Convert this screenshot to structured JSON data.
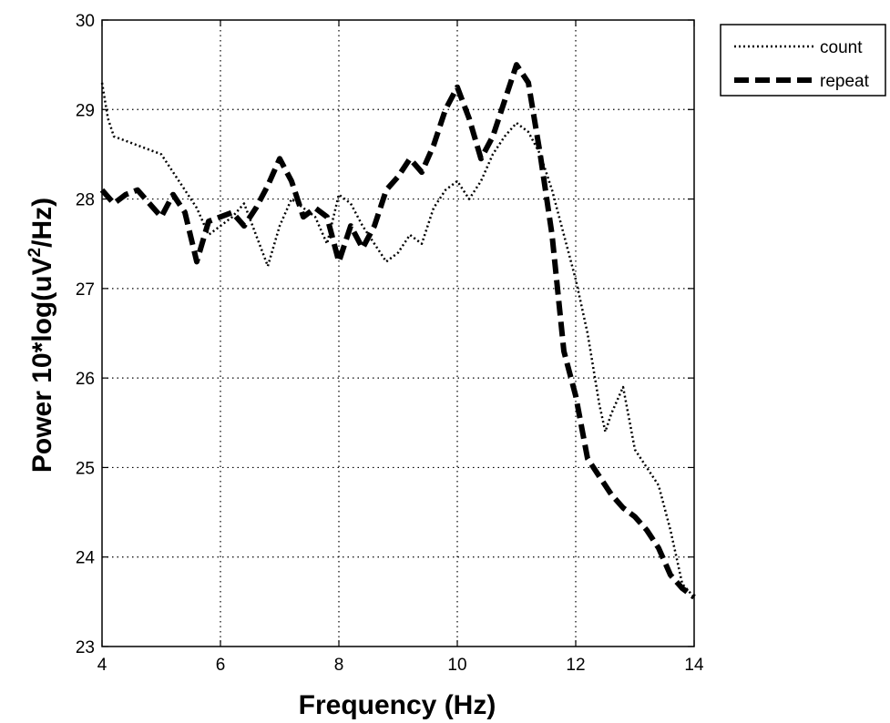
{
  "chart_data": {
    "type": "line",
    "title": "",
    "xlabel": "Frequency (Hz)",
    "ylabel_prefix": "Power 10*log(uV",
    "ylabel_sup": "2",
    "ylabel_suffix": "/Hz)",
    "xlim": [
      4,
      14
    ],
    "ylim": [
      23,
      30
    ],
    "xticks": [
      4,
      6,
      8,
      10,
      12,
      14
    ],
    "yticks": [
      23,
      24,
      25,
      26,
      27,
      28,
      29,
      30
    ],
    "grid": true,
    "legend_position": "outside-top-right",
    "series": [
      {
        "name": "count",
        "style": "dotted",
        "color": "#000000",
        "x": [
          4.0,
          4.1,
          4.2,
          4.4,
          4.6,
          4.8,
          5.0,
          5.2,
          5.4,
          5.6,
          5.8,
          6.0,
          6.2,
          6.4,
          6.6,
          6.8,
          7.0,
          7.2,
          7.4,
          7.6,
          7.8,
          8.0,
          8.2,
          8.4,
          8.6,
          8.8,
          9.0,
          9.2,
          9.4,
          9.6,
          9.8,
          10.0,
          10.2,
          10.4,
          10.6,
          10.8,
          11.0,
          11.2,
          11.4,
          11.6,
          11.8,
          12.0,
          12.2,
          12.4,
          12.5,
          12.6,
          12.8,
          13.0,
          13.2,
          13.4,
          13.6,
          13.8,
          14.0
        ],
        "y": [
          29.3,
          28.9,
          28.7,
          28.65,
          28.6,
          28.55,
          28.5,
          28.3,
          28.1,
          27.9,
          27.6,
          27.7,
          27.8,
          27.95,
          27.6,
          27.25,
          27.7,
          28.0,
          27.9,
          27.8,
          27.5,
          28.05,
          27.95,
          27.7,
          27.5,
          27.3,
          27.4,
          27.6,
          27.5,
          27.9,
          28.1,
          28.2,
          28.0,
          28.2,
          28.5,
          28.7,
          28.85,
          28.75,
          28.5,
          28.1,
          27.6,
          27.1,
          26.5,
          25.7,
          25.4,
          25.6,
          25.9,
          25.2,
          25.0,
          24.8,
          24.3,
          23.7,
          23.55
        ]
      },
      {
        "name": "repeat",
        "style": "dashed",
        "color": "#000000",
        "x": [
          4.0,
          4.2,
          4.4,
          4.6,
          4.8,
          5.0,
          5.2,
          5.4,
          5.6,
          5.8,
          6.0,
          6.2,
          6.4,
          6.6,
          6.8,
          7.0,
          7.2,
          7.4,
          7.6,
          7.8,
          8.0,
          8.2,
          8.4,
          8.6,
          8.8,
          9.0,
          9.2,
          9.4,
          9.6,
          9.8,
          10.0,
          10.2,
          10.4,
          10.6,
          10.8,
          11.0,
          11.2,
          11.4,
          11.6,
          11.8,
          12.0,
          12.2,
          12.4,
          12.6,
          12.8,
          13.0,
          13.2,
          13.4,
          13.6,
          13.8,
          14.0
        ],
        "y": [
          28.1,
          27.95,
          28.05,
          28.1,
          27.95,
          27.8,
          28.05,
          27.85,
          27.3,
          27.75,
          27.8,
          27.85,
          27.7,
          27.9,
          28.15,
          28.45,
          28.2,
          27.8,
          27.9,
          27.8,
          27.3,
          27.7,
          27.45,
          27.7,
          28.1,
          28.25,
          28.45,
          28.3,
          28.6,
          29.0,
          29.25,
          28.9,
          28.45,
          28.7,
          29.1,
          29.5,
          29.3,
          28.5,
          27.6,
          26.3,
          25.8,
          25.1,
          24.9,
          24.7,
          24.55,
          24.45,
          24.3,
          24.1,
          23.8,
          23.65,
          23.55
        ]
      }
    ]
  }
}
